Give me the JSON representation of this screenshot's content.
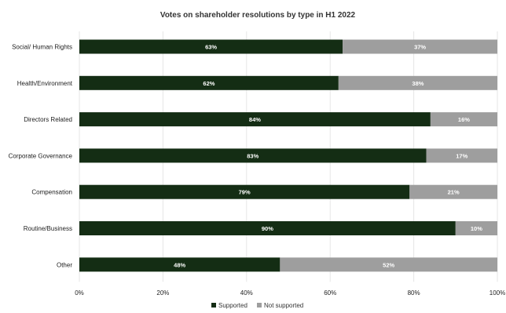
{
  "chart_data": {
    "type": "bar",
    "orientation": "horizontal",
    "stacked": true,
    "title": "Votes on shareholder resolutions by type in H1 2022",
    "categories": [
      "Social/ Human Rights",
      "Health/Environment",
      "Directors Related",
      "Corporate Governance",
      "Compensation",
      "Routine/Business",
      "Other"
    ],
    "series": [
      {
        "name": "Supported",
        "color": "#142d14",
        "values": [
          63,
          62,
          84,
          83,
          79,
          90,
          48
        ],
        "labels": [
          "63%",
          "62%",
          "84%",
          "83%",
          "79%",
          "90%",
          "48%"
        ]
      },
      {
        "name": "Not supported",
        "color": "#9e9e9e",
        "values": [
          37,
          38,
          16,
          17,
          21,
          10,
          52
        ],
        "labels": [
          "37%",
          "38%",
          "16%",
          "17%",
          "21%",
          "10%",
          "52%"
        ]
      }
    ],
    "xlim": [
      0,
      100
    ],
    "x_ticks": [
      "0%",
      "20%",
      "40%",
      "60%",
      "80%",
      "100%"
    ],
    "grid": true,
    "legend_position": "bottom"
  }
}
